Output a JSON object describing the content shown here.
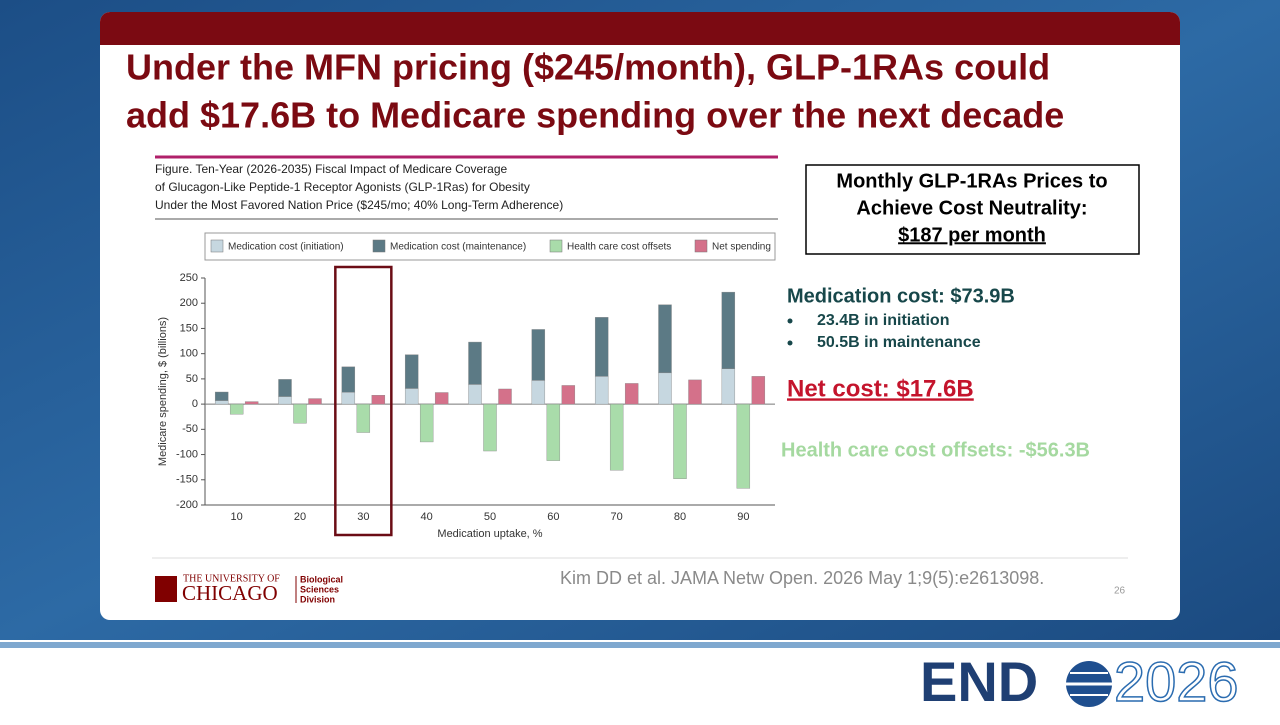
{
  "slide": {
    "title_lines": [
      "Under the MFN pricing ($245/month), GLP-1RAs could",
      "add $17.6B to Medicare spending over the next decade"
    ],
    "info_box": [
      "Monthly GLP-1RAs Prices to",
      "Achieve Cost Neutrality:",
      "$187 per month"
    ],
    "medication_cost": "Medication cost: $73.9B",
    "bullets": [
      "23.4B in initiation",
      "50.5B in maintenance"
    ],
    "net_cost": "Net cost: $17.6B",
    "offsets": "Health care cost offsets: -$56.3B",
    "citation": "Kim DD et al. JAMA Netw Open. 2026 May 1;9(5):e2613098.",
    "page_number": "26",
    "logo": {
      "line1": "THE UNIVERSITY OF",
      "line2": "CHICAGO",
      "division": [
        "Biological",
        "Sciences",
        "Division"
      ]
    },
    "event": {
      "name": "END",
      "year": "2026"
    }
  },
  "chart_data": {
    "type": "bar",
    "title_lines": [
      "Figure. Ten-Year (2026-2035) Fiscal Impact of Medicare Coverage",
      "of Glucagon-Like Peptide-1 Receptor Agonists (GLP-1Ras) for Obesity",
      "Under the Most Favored Nation Price ($245/mo; 40% Long-Term Adherence)"
    ],
    "x_label": "Medication uptake, %",
    "y_label": "Medicare spending, $ (billions)",
    "categories": [
      10,
      20,
      30,
      40,
      50,
      60,
      70,
      80,
      90
    ],
    "series": [
      {
        "name": "Medication cost (initiation)",
        "color": "#c6d7e0",
        "stack": "medication",
        "values": [
          7,
          15,
          23.4,
          31,
          39,
          47,
          55,
          62,
          70
        ]
      },
      {
        "name": "Medication cost (maintenance)",
        "color": "#5c7a85",
        "stack": "medication",
        "values": [
          17,
          34,
          50.5,
          67,
          84,
          101,
          117,
          135,
          152
        ]
      },
      {
        "name": "Health care cost offsets",
        "color": "#a9dcaa",
        "stack": "offsets",
        "values": [
          -20,
          -38,
          -56.3,
          -75,
          -93,
          -112,
          -131,
          -148,
          -167
        ]
      },
      {
        "name": "Net spending",
        "color": "#d4718a",
        "stack": "net",
        "values": [
          5,
          11,
          17.6,
          23,
          30,
          37,
          41,
          48,
          55
        ]
      }
    ],
    "ylim": [
      -200,
      250
    ],
    "yticks": [
      -200,
      -150,
      -100,
      -50,
      0,
      50,
      100,
      150,
      200,
      250
    ],
    "highlight": 30
  }
}
